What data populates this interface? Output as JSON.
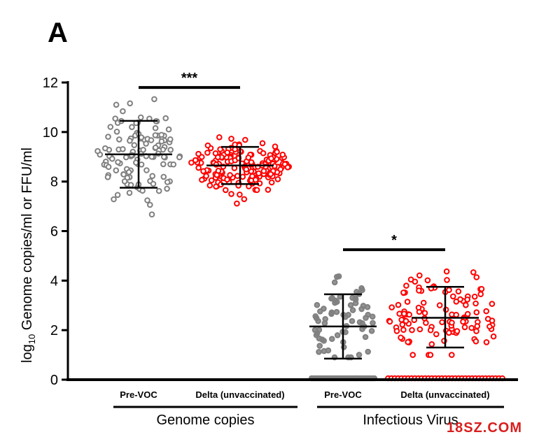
{
  "panel_label": "A",
  "watermark": {
    "text": "18SZ.COM",
    "color": "#d81e1e"
  },
  "chart_data": {
    "type": "scatter",
    "title": "",
    "ylabel": {
      "prefix": "log",
      "subscript": "10",
      "rest": " Genome copies/ml or  FFU/ml"
    },
    "ylim": [
      0,
      12
    ],
    "yticks": [
      0,
      2,
      4,
      6,
      8,
      10,
      12
    ],
    "groups": [
      {
        "label": "Genome copies",
        "categories": [
          "Pre-VOC",
          "Delta (unvaccinated)"
        ]
      },
      {
        "label": "Infectious Virus",
        "categories": [
          "Pre-VOC",
          "Delta (unvaccinated)"
        ]
      }
    ],
    "series": [
      {
        "category": "Pre-VOC",
        "group": "Genome copies",
        "color": "#808080",
        "fill": "none",
        "mean": 9.1,
        "sd_low": 7.75,
        "sd_high": 10.45,
        "min": 6.4,
        "max": 11.4,
        "n": 120,
        "n_zero": 0,
        "spread": 62
      },
      {
        "category": "Delta (unvaccinated)",
        "group": "Genome copies",
        "color": "#ff0000",
        "fill": "none",
        "mean": 8.65,
        "sd_low": 7.9,
        "sd_high": 9.4,
        "min": 6.6,
        "max": 10.2,
        "n": 170,
        "n_zero": 0,
        "spread": 72
      },
      {
        "category": "Pre-VOC",
        "group": "Infectious Virus",
        "color": "#808080",
        "fill": "#808080",
        "mean": 2.15,
        "sd_low": 0.85,
        "sd_high": 3.45,
        "min": 0.9,
        "max": 4.3,
        "n": 110,
        "n_zero": 40,
        "spread": 46
      },
      {
        "category": "Delta (unvaccinated)",
        "group": "Infectious Virus",
        "color": "#ff0000",
        "fill": "none",
        "mean": 2.5,
        "sd_low": 1.3,
        "sd_high": 3.75,
        "min": 1.0,
        "max": 4.65,
        "n": 150,
        "n_zero": 35,
        "spread": 84
      }
    ],
    "significance": [
      {
        "group": "Genome copies",
        "y": 11.8,
        "label": "***"
      },
      {
        "group": "Infectious Virus",
        "y": 5.25,
        "label": "*"
      }
    ],
    "grid": false,
    "legend": "none"
  }
}
